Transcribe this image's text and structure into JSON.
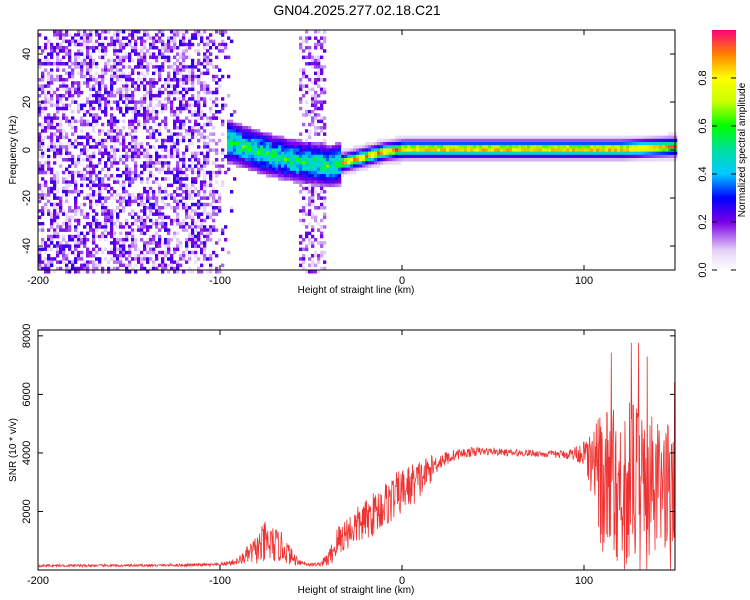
{
  "title": "GN04.2025.277.02.18.C21",
  "chart_data": [
    {
      "type": "heatmap",
      "name": "spectrogram",
      "xlabel": "Height of straight line (km)",
      "ylabel": "Frequency (Hz)",
      "xlim": [
        -200,
        150
      ],
      "ylim": [
        -50,
        50
      ],
      "xticks": [
        -200,
        -100,
        0,
        100
      ],
      "yticks": [
        -40,
        -20,
        0,
        20,
        40
      ],
      "colorbar": {
        "label": "Normalized spectral amplitude",
        "range": [
          0,
          1
        ],
        "ticks": [
          0,
          0.2,
          0.4,
          0.6,
          0.8
        ],
        "tick_labels": [
          "0.0",
          "0.2",
          "0.4",
          "0.6",
          "0.8"
        ],
        "stops": [
          {
            "v": 0.0,
            "color": "#ffffff"
          },
          {
            "v": 0.08,
            "color": "#e6d4f7"
          },
          {
            "v": 0.2,
            "color": "#7a00e6"
          },
          {
            "v": 0.3,
            "color": "#0000ff"
          },
          {
            "v": 0.4,
            "color": "#00c8ff"
          },
          {
            "v": 0.5,
            "color": "#00e0a0"
          },
          {
            "v": 0.6,
            "color": "#00ff00"
          },
          {
            "v": 0.7,
            "color": "#c8ff00"
          },
          {
            "v": 0.8,
            "color": "#ffff00"
          },
          {
            "v": 0.9,
            "color": "#ff8000"
          },
          {
            "v": 1.0,
            "color": "#ff0080"
          }
        ]
      },
      "features": {
        "noise_region_km": [
          -200,
          -92
        ],
        "noise_band_km": [
          -58,
          -42
        ],
        "transition_km": [
          -95,
          -35
        ],
        "ridge": {
          "x": [
            -95,
            -80,
            -65,
            -50,
            -40,
            -30,
            -20,
            -10,
            0,
            20,
            50,
            80,
            100,
            120,
            150
          ],
          "f": [
            4,
            0,
            -3,
            -5,
            -6,
            -4,
            -2,
            0,
            1,
            1,
            1,
            1,
            1,
            1,
            2
          ]
        }
      }
    },
    {
      "type": "line",
      "name": "snr",
      "xlabel": "Height of straight line (km)",
      "ylabel": "SNR (10 * v/v)",
      "xlim": [
        -200,
        150
      ],
      "ylim": [
        0,
        8200
      ],
      "xticks": [
        -200,
        -100,
        0,
        100
      ],
      "yticks": [
        2000,
        4000,
        6000,
        8000
      ],
      "color": "#ee3333",
      "series": [
        {
          "name": "SNR",
          "x": [
            -200,
            -150,
            -100,
            -90,
            -80,
            -75,
            -70,
            -65,
            -60,
            -55,
            -50,
            -45,
            -40,
            -35,
            -30,
            -20,
            -10,
            0,
            10,
            20,
            30,
            40,
            50,
            60,
            70,
            80,
            90,
            100,
            110,
            120,
            130,
            140,
            150
          ],
          "mean": [
            150,
            150,
            180,
            300,
            700,
            900,
            850,
            750,
            400,
            250,
            180,
            200,
            400,
            1000,
            1300,
            1700,
            2200,
            2700,
            3100,
            3700,
            3950,
            4050,
            4050,
            4000,
            4000,
            3950,
            3950,
            4000,
            3000,
            3000,
            3000,
            2700,
            3000
          ],
          "amp": [
            40,
            40,
            50,
            120,
            500,
            800,
            600,
            500,
            250,
            80,
            60,
            60,
            300,
            600,
            600,
            700,
            800,
            800,
            700,
            300,
            180,
            150,
            120,
            120,
            120,
            120,
            150,
            400,
            2400,
            2800,
            2800,
            2400,
            2000
          ]
        }
      ]
    }
  ]
}
